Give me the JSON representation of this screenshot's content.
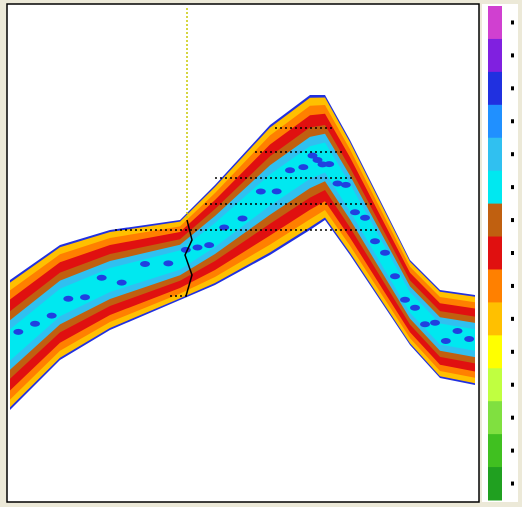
{
  "colorbar": {
    "colors": [
      "#d040d0",
      "#8020e0",
      "#2030e0",
      "#2090ff",
      "#30c0f0",
      "#00e8f0",
      "#c06010",
      "#e01010",
      "#ff8000",
      "#ffc000",
      "#ffff00",
      "#c0ff40",
      "#80e040",
      "#40c020",
      "#20a020"
    ]
  }
}
